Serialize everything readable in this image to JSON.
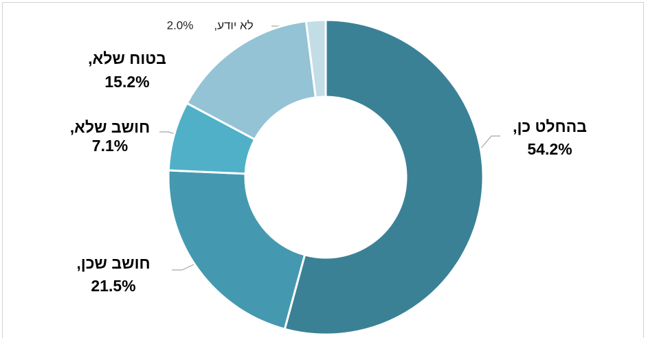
{
  "chart_data": {
    "type": "donut",
    "categories": [
      "בהחלט כן,",
      "חושב שכן,",
      "חושב שלא,",
      "בטוח שלא,",
      "לא יודע,"
    ],
    "values": [
      54.2,
      21.5,
      7.1,
      15.2,
      2.0
    ],
    "value_labels": [
      "54.2%",
      "21.5%",
      "7.1%",
      "15.2%",
      "2.0%"
    ],
    "colors": [
      "#3a8196",
      "#4499b0",
      "#4fb0c8",
      "#93c3d5",
      "#c3dde6"
    ]
  }
}
